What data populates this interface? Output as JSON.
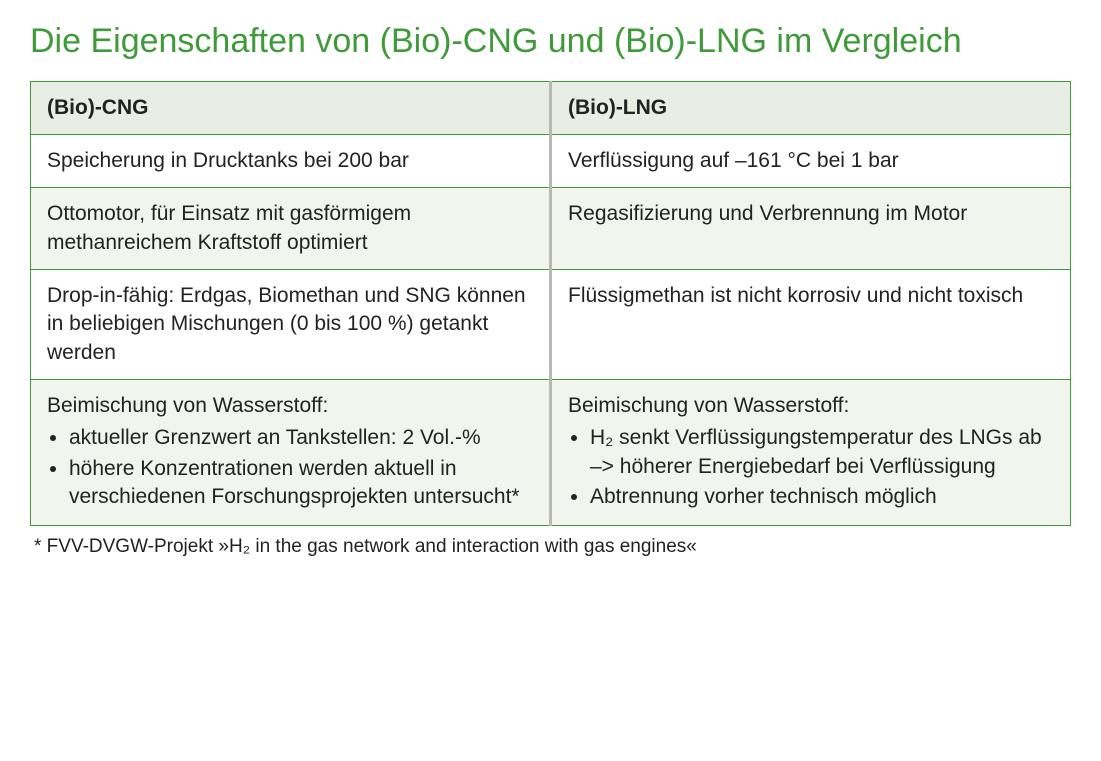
{
  "colors": {
    "title": "#3f9a3a",
    "border": "#3f9a3a",
    "header_bg": "#e9eee4",
    "row_even_bg": "#ffffff",
    "row_odd_bg": "#f2f5ee",
    "text": "#222222",
    "divider": "#b7b9b4"
  },
  "title": "Die Eigenschaften von (Bio)-CNG und (Bio)-LNG im Vergleich",
  "table": {
    "columns": [
      {
        "header": "(Bio)-CNG"
      },
      {
        "header": "(Bio)-LNG"
      }
    ],
    "rows": [
      {
        "cng": {
          "text": "Speicherung in Drucktanks bei 200 bar"
        },
        "lng": {
          "text": "Verflüssigung auf –161 °C bei 1 bar"
        }
      },
      {
        "cng": {
          "text": "Ottomotor, für Einsatz mit gasförmigem methanreichem Kraftstoff optimiert"
        },
        "lng": {
          "text": "Regasifizierung und Verbrennung im Motor"
        }
      },
      {
        "cng": {
          "text": "Drop-in-fähig: Erdgas, Biomethan und SNG können in beliebigen Mischungen (0 bis 100 %) getankt werden"
        },
        "lng": {
          "text": "Flüssigmethan ist nicht korrosiv und nicht toxisch"
        }
      },
      {
        "cng": {
          "intro": "Beimischung von Wasserstoff:",
          "bullets": [
            "aktueller Grenzwert an Tankstellen: 2 Vol.-%",
            "höhere Konzentrationen werden aktuell in verschiedenen Forschungs­projekten untersucht*"
          ]
        },
        "lng": {
          "intro": "Beimischung von Wasserstoff:",
          "bullets": [
            "H₂ senkt Verflüssigungstemperatur des LNGs ab –> höherer Energiebedarf bei Verflüssigung",
            "Abtrennung vorher technisch möglich"
          ]
        }
      }
    ]
  },
  "footnote": "* FVV-DVGW-Projekt »H₂ in the gas network and interaction with gas engines«"
}
